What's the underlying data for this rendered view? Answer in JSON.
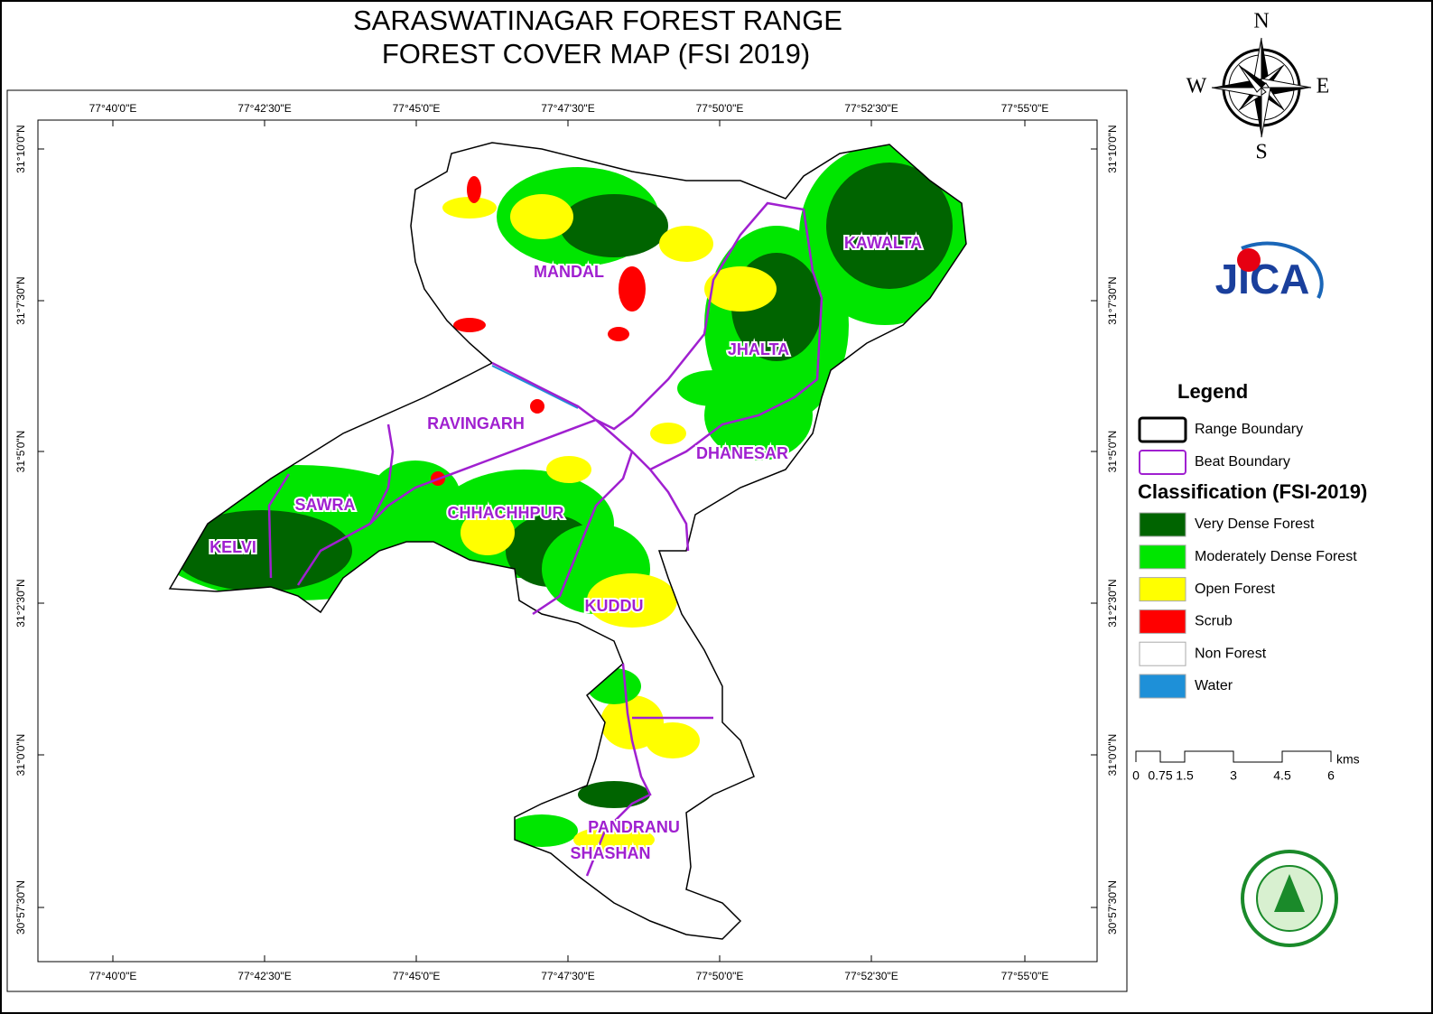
{
  "title": [
    "SARASWATINAGAR FOREST RANGE",
    "FOREST COVER MAP (FSI 2019)"
  ],
  "longitude_labels": [
    "77°40'0\"E",
    "77°42'30\"E",
    "77°45'0\"E",
    "77°47'30\"E",
    "77°50'0\"E",
    "77°52'30\"E",
    "77°55'0\"E"
  ],
  "latitude_labels": [
    "31°10'0\"N",
    "31°7'30\"N",
    "31°5'0\"N",
    "31°2'30\"N",
    "31°0'0\"N",
    "30°57'30\"N"
  ],
  "beats": [
    "MANDAL",
    "KAWALTA",
    "JHALTA",
    "RAVINGARH",
    "DHANESAR",
    "SAWRA",
    "CHHACHHPUR",
    "KELVI",
    "KUDDU",
    "PANDRANU",
    "SHASHAN"
  ],
  "compass": {
    "n": "N",
    "e": "E",
    "s": "S",
    "w": "W"
  },
  "logo": "JICA",
  "legend": {
    "title": "Legend",
    "boundaries": [
      {
        "label": "Range Boundary",
        "color": "#000000"
      },
      {
        "label": "Beat Boundary",
        "color": "#a020d0"
      }
    ],
    "classification_title": "Classification (FSI-2019)",
    "classes": [
      {
        "label": "Very Dense Forest",
        "color": "#006400"
      },
      {
        "label": "Moderately Dense Forest",
        "color": "#00e600"
      },
      {
        "label": "Open Forest",
        "color": "#ffff00"
      },
      {
        "label": "Scrub",
        "color": "#ff0000"
      },
      {
        "label": "Non Forest",
        "color": "#ffffff"
      },
      {
        "label": "Water",
        "color": "#1e90d8"
      }
    ]
  },
  "scale": {
    "ticks": [
      0,
      0.75,
      1.5,
      3,
      4.5,
      6
    ],
    "unit": "kms"
  }
}
